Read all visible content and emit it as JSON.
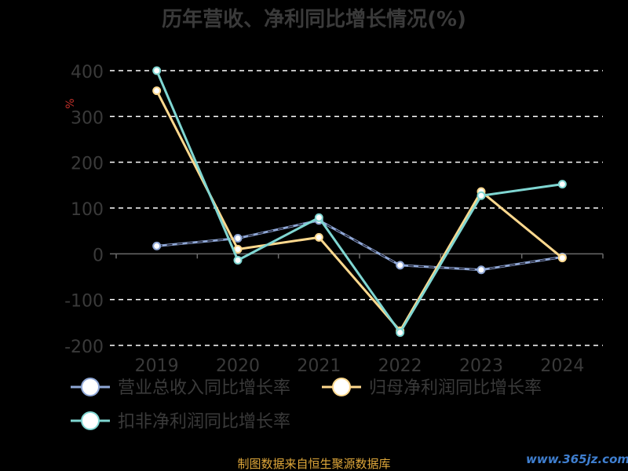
{
  "chart_data": {
    "type": "line",
    "title": "历年营收、净利同比增长情况(%)",
    "ylabel": "%",
    "xlabel": "",
    "categories": [
      "2019",
      "2020",
      "2021",
      "2022",
      "2023",
      "2024"
    ],
    "ylim": [
      -200,
      400
    ],
    "yticks": [
      400,
      300,
      200,
      100,
      0,
      -100,
      -200
    ],
    "grid": true,
    "legend_position": "bottom-left",
    "series": [
      {
        "name": "营业总收入同比增长率",
        "color": "#8fa7d6",
        "dashed": true,
        "values": [
          17,
          34,
          73,
          -25,
          -35,
          -7
        ]
      },
      {
        "name": "归母净利润同比增长率",
        "color": "#ffd98e",
        "dashed": false,
        "values": [
          356,
          10,
          36,
          -168,
          136,
          -9
        ]
      },
      {
        "name": "扣非净利润同比增长率",
        "color": "#7fd6d2",
        "dashed": false,
        "values": [
          400,
          -14,
          79,
          -172,
          127,
          152
        ]
      }
    ]
  },
  "footer": {
    "source": "制图数据来自恒生聚源数据库",
    "watermark": "www.365jz.com"
  }
}
